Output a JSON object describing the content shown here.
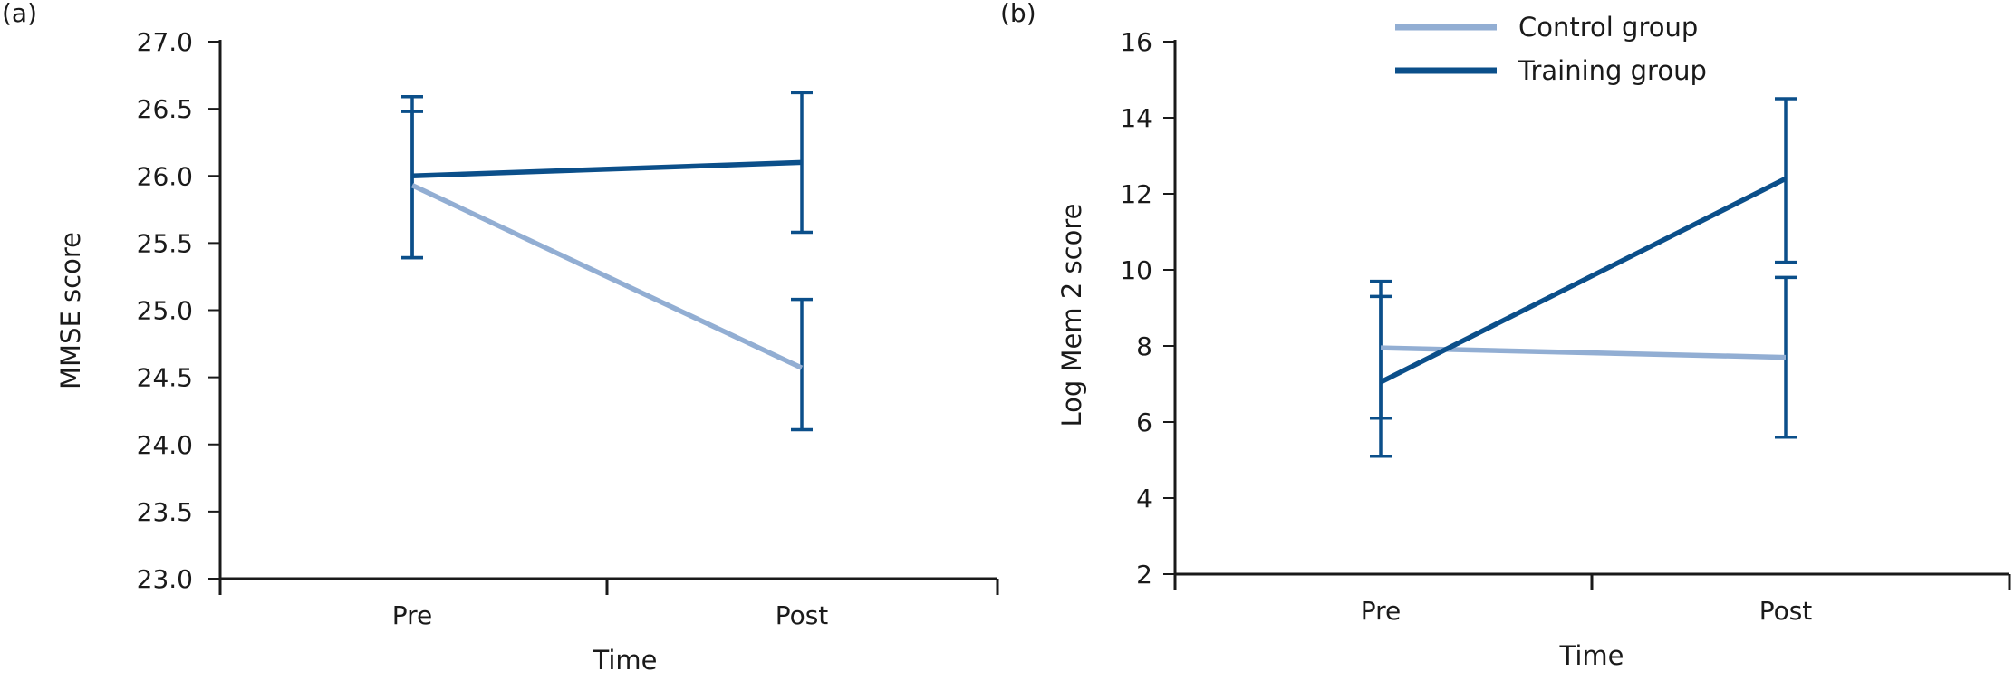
{
  "colors": {
    "control": "#92aed3",
    "training": "#0b4f8a",
    "axis": "#1a1a1a"
  },
  "legend": {
    "position": "top",
    "items": [
      {
        "label": "Control group",
        "color": "#92aed3"
      },
      {
        "label": "Training group",
        "color": "#0b4f8a"
      }
    ]
  },
  "chart_data": [
    {
      "panel_label": "(a)",
      "type": "line",
      "categories": [
        "Pre",
        "Post"
      ],
      "xlabel": "Time",
      "ylabel": "MMSE score",
      "ylim": [
        23.0,
        27.0
      ],
      "yticks": [
        "23.0",
        "23.5",
        "24.0",
        "24.5",
        "25.0",
        "25.5",
        "26.0",
        "26.5",
        "27.0"
      ],
      "grid": false,
      "series": [
        {
          "name": "Control group",
          "values": [
            25.93,
            24.57
          ],
          "err_low": [
            25.39,
            24.11
          ],
          "err_high": [
            26.48,
            25.08
          ]
        },
        {
          "name": "Training group",
          "values": [
            26.0,
            26.1
          ],
          "err_low": [
            25.39,
            25.58
          ],
          "err_high": [
            26.59,
            26.62
          ]
        }
      ]
    },
    {
      "panel_label": "(b)",
      "type": "line",
      "categories": [
        "Pre",
        "Post"
      ],
      "xlabel": "Time",
      "ylabel": "Log Mem 2 score",
      "ylim": [
        2,
        16
      ],
      "yticks": [
        "2",
        "4",
        "6",
        "8",
        "10",
        "12",
        "14",
        "16"
      ],
      "grid": false,
      "series": [
        {
          "name": "Control group",
          "values": [
            7.95,
            7.7
          ],
          "err_low": [
            6.1,
            5.6
          ],
          "err_high": [
            9.3,
            9.8
          ]
        },
        {
          "name": "Training group",
          "values": [
            7.05,
            12.4
          ],
          "err_low": [
            5.1,
            10.2
          ],
          "err_high": [
            9.7,
            14.5
          ]
        }
      ]
    }
  ]
}
